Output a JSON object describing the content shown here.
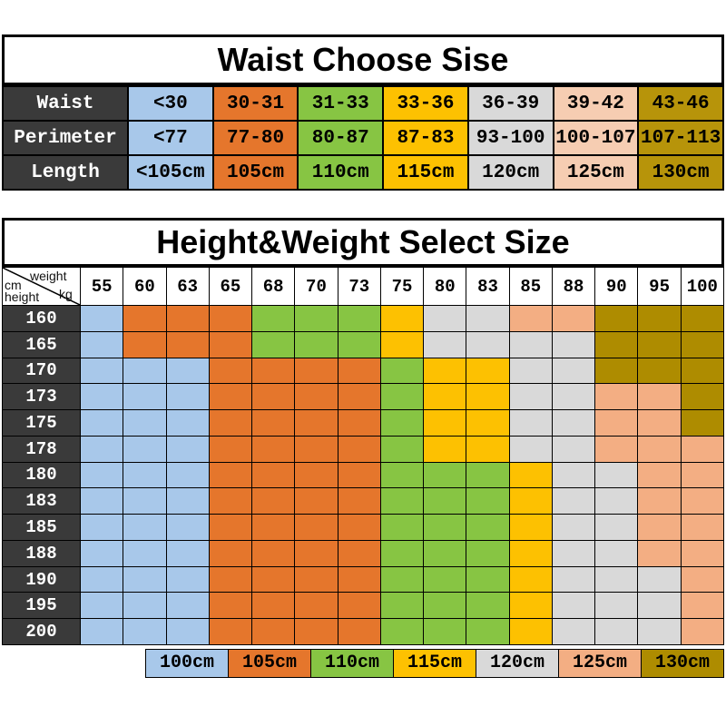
{
  "waist_table": {
    "title": "Waist Choose Sise",
    "column_colors": [
      "#a8c8ea",
      "#e5762c",
      "#87c543",
      "#fdc101",
      "#d9d9d9",
      "#f6cdb2",
      "#b7940a"
    ],
    "rows": [
      {
        "header": "Waist",
        "cells": [
          "<30",
          "30-31",
          "31-33",
          "33-36",
          "36-39",
          "39-42",
          "43-46"
        ]
      },
      {
        "header": "Perimeter",
        "cells": [
          "<77",
          "77-80",
          "80-87",
          "87-83",
          "93-100",
          "100-107",
          "107-113"
        ]
      },
      {
        "header": "Length",
        "cells": [
          "<105cm",
          "105cm",
          "110cm",
          "115cm",
          "120cm",
          "125cm",
          "130cm"
        ]
      }
    ]
  },
  "size_table": {
    "title": "Height&Weight Select Size",
    "corner": {
      "weight": "weight",
      "kg": "kg",
      "cm": "cm",
      "height": "height"
    }
  },
  "legend": {
    "items": [
      {
        "label": "100cm",
        "code": "100",
        "color": "#a8c8ea"
      },
      {
        "label": "105cm",
        "code": "105",
        "color": "#e5762c"
      },
      {
        "label": "110cm",
        "code": "110",
        "color": "#87c543"
      },
      {
        "label": "115cm",
        "code": "115",
        "color": "#fdc101"
      },
      {
        "label": "120cm",
        "code": "120",
        "color": "#d9d9d9"
      },
      {
        "label": "125cm",
        "code": "125",
        "color": "#f3ae83"
      },
      {
        "label": "130cm",
        "code": "130",
        "color": "#ae8c00"
      }
    ]
  },
  "chart_data": {
    "type": "heatmap",
    "title": "Height&Weight Select Size",
    "xlabel": "weight kg",
    "ylabel": "height cm",
    "x": [
      55,
      60,
      63,
      65,
      68,
      70,
      73,
      75,
      80,
      83,
      85,
      88,
      90,
      95,
      100
    ],
    "y": [
      160,
      165,
      170,
      173,
      175,
      178,
      180,
      183,
      185,
      188,
      190,
      195,
      200
    ],
    "values_unit": "size length cm",
    "legend_position": "bottom",
    "values": [
      [
        "100",
        "105",
        "105",
        "105",
        "110",
        "110",
        "110",
        "115",
        "120",
        "120",
        "125",
        "125",
        "130",
        "130",
        "130"
      ],
      [
        "100",
        "105",
        "105",
        "105",
        "110",
        "110",
        "110",
        "115",
        "120",
        "120",
        "120",
        "120",
        "130",
        "130",
        "130"
      ],
      [
        "100",
        "100",
        "100",
        "105",
        "105",
        "105",
        "105",
        "110",
        "115",
        "115",
        "120",
        "120",
        "130",
        "130",
        "130"
      ],
      [
        "100",
        "100",
        "100",
        "105",
        "105",
        "105",
        "105",
        "110",
        "115",
        "115",
        "120",
        "120",
        "125",
        "125",
        "130"
      ],
      [
        "100",
        "100",
        "100",
        "105",
        "105",
        "105",
        "105",
        "110",
        "115",
        "115",
        "120",
        "120",
        "125",
        "125",
        "130"
      ],
      [
        "100",
        "100",
        "100",
        "105",
        "105",
        "105",
        "105",
        "110",
        "115",
        "115",
        "120",
        "120",
        "125",
        "125",
        "125"
      ],
      [
        "100",
        "100",
        "100",
        "105",
        "105",
        "105",
        "105",
        "110",
        "110",
        "110",
        "115",
        "120",
        "120",
        "125",
        "125"
      ],
      [
        "100",
        "100",
        "100",
        "105",
        "105",
        "105",
        "105",
        "110",
        "110",
        "110",
        "115",
        "120",
        "120",
        "125",
        "125"
      ],
      [
        "100",
        "100",
        "100",
        "105",
        "105",
        "105",
        "105",
        "110",
        "110",
        "110",
        "115",
        "120",
        "120",
        "125",
        "125"
      ],
      [
        "100",
        "100",
        "100",
        "105",
        "105",
        "105",
        "105",
        "110",
        "110",
        "110",
        "115",
        "120",
        "120",
        "125",
        "125"
      ],
      [
        "100",
        "100",
        "100",
        "105",
        "105",
        "105",
        "105",
        "110",
        "110",
        "110",
        "115",
        "120",
        "120",
        "120",
        "125"
      ],
      [
        "100",
        "100",
        "100",
        "105",
        "105",
        "105",
        "105",
        "110",
        "110",
        "110",
        "115",
        "120",
        "120",
        "120",
        "125"
      ],
      [
        "100",
        "100",
        "100",
        "105",
        "105",
        "105",
        "105",
        "110",
        "110",
        "110",
        "115",
        "120",
        "120",
        "120",
        "125"
      ]
    ]
  }
}
